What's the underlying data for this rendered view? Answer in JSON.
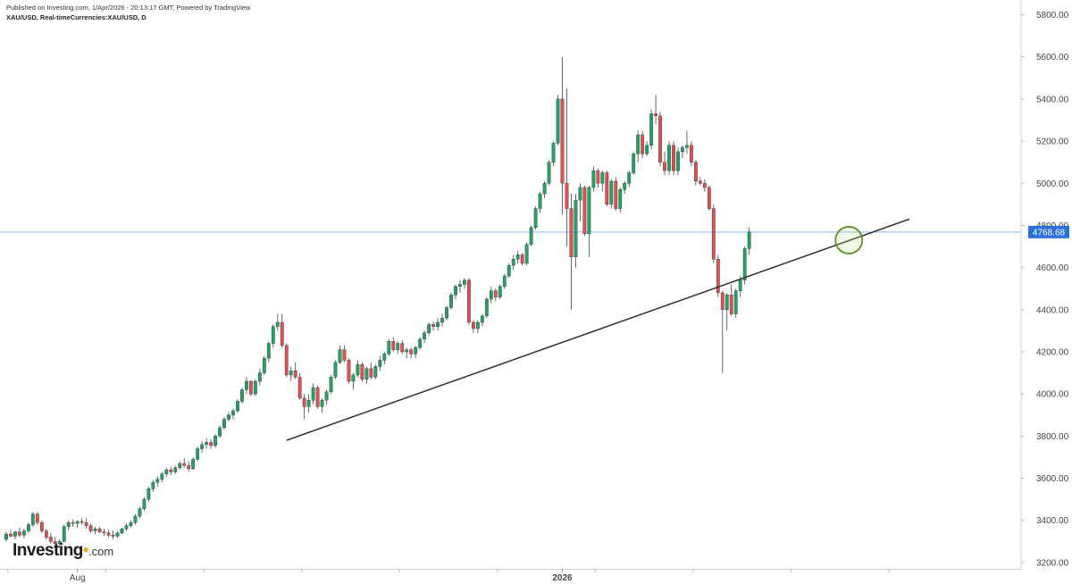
{
  "header": {
    "published": "Published on Investing.com, 1/Apr/2026 - 20:13:17 GMT, Powered by TradingView",
    "symbol": "XAU/USD, Real-timeCurrencies:XAU/USD, D"
  },
  "logo": {
    "name": "Investing",
    "suffix": ".com",
    "accent_color": "#f5a623"
  },
  "chart_data": {
    "type": "candlestick",
    "title": "",
    "xlabel": "",
    "ylabel": "",
    "ylim": [
      3170,
      5870
    ],
    "y_ticks": [
      "3200.00",
      "3400.00",
      "3600.00",
      "3800.00",
      "4000.00",
      "4200.00",
      "4400.00",
      "4600.00",
      "4800.00",
      "5000.00",
      "5200.00",
      "5400.00",
      "5600.00",
      "5800.00"
    ],
    "x_labels": [
      {
        "label": "Aug",
        "index": 16
      },
      {
        "label": "2026",
        "index": 125
      }
    ],
    "grid": false,
    "colors": {
      "up": "#26a269",
      "down": "#e0514f",
      "trendline": "#333333",
      "price_line": "#8ab4f8",
      "price_label": "#2a6fdb"
    },
    "current_price": {
      "value": 4768.68,
      "label": "4768.68"
    },
    "trendline": {
      "start": {
        "index": 63,
        "price": 3780
      },
      "end": {
        "index": 203,
        "price": 4830
      }
    },
    "highlight": {
      "index": 189,
      "price": 4730,
      "color": "#5a8f29"
    },
    "series": [
      {
        "candles": [
          [
            3310,
            3345,
            3300,
            3335
          ],
          [
            3335,
            3355,
            3320,
            3325
          ],
          [
            3325,
            3350,
            3310,
            3345
          ],
          [
            3345,
            3365,
            3320,
            3330
          ],
          [
            3330,
            3360,
            3315,
            3350
          ],
          [
            3350,
            3390,
            3340,
            3380
          ],
          [
            3380,
            3440,
            3370,
            3430
          ],
          [
            3430,
            3440,
            3380,
            3390
          ],
          [
            3390,
            3400,
            3340,
            3350
          ],
          [
            3350,
            3360,
            3310,
            3320
          ],
          [
            3320,
            3340,
            3290,
            3300
          ],
          [
            3300,
            3320,
            3270,
            3290
          ],
          [
            3290,
            3310,
            3270,
            3300
          ],
          [
            3300,
            3380,
            3295,
            3370
          ],
          [
            3370,
            3400,
            3355,
            3390
          ],
          [
            3390,
            3405,
            3370,
            3385
          ],
          [
            3385,
            3400,
            3365,
            3395
          ],
          [
            3395,
            3410,
            3380,
            3390
          ],
          [
            3390,
            3410,
            3360,
            3375
          ],
          [
            3375,
            3385,
            3340,
            3350
          ],
          [
            3350,
            3370,
            3335,
            3360
          ],
          [
            3360,
            3370,
            3340,
            3345
          ],
          [
            3345,
            3360,
            3325,
            3340
          ],
          [
            3340,
            3355,
            3320,
            3330
          ],
          [
            3330,
            3350,
            3310,
            3325
          ],
          [
            3325,
            3350,
            3315,
            3340
          ],
          [
            3340,
            3365,
            3335,
            3360
          ],
          [
            3360,
            3385,
            3350,
            3375
          ],
          [
            3375,
            3400,
            3365,
            3390
          ],
          [
            3390,
            3430,
            3380,
            3420
          ],
          [
            3420,
            3465,
            3410,
            3455
          ],
          [
            3455,
            3510,
            3445,
            3500
          ],
          [
            3500,
            3560,
            3490,
            3550
          ],
          [
            3550,
            3590,
            3535,
            3580
          ],
          [
            3580,
            3610,
            3560,
            3595
          ],
          [
            3595,
            3630,
            3580,
            3620
          ],
          [
            3620,
            3650,
            3605,
            3640
          ],
          [
            3640,
            3655,
            3615,
            3630
          ],
          [
            3630,
            3660,
            3620,
            3650
          ],
          [
            3650,
            3680,
            3640,
            3670
          ],
          [
            3670,
            3695,
            3650,
            3660
          ],
          [
            3660,
            3680,
            3630,
            3645
          ],
          [
            3645,
            3700,
            3640,
            3690
          ],
          [
            3690,
            3750,
            3680,
            3740
          ],
          [
            3740,
            3775,
            3720,
            3760
          ],
          [
            3760,
            3790,
            3740,
            3770
          ],
          [
            3770,
            3785,
            3740,
            3755
          ],
          [
            3755,
            3810,
            3745,
            3800
          ],
          [
            3800,
            3850,
            3790,
            3840
          ],
          [
            3840,
            3890,
            3830,
            3880
          ],
          [
            3880,
            3915,
            3870,
            3900
          ],
          [
            3900,
            3930,
            3880,
            3920
          ],
          [
            3920,
            3975,
            3910,
            3965
          ],
          [
            3965,
            4030,
            3955,
            4020
          ],
          [
            4020,
            4080,
            4000,
            4060
          ],
          [
            4060,
            4065,
            3990,
            4000
          ],
          [
            4000,
            4070,
            3990,
            4060
          ],
          [
            4060,
            4120,
            4040,
            4100
          ],
          [
            4100,
            4180,
            4090,
            4170
          ],
          [
            4170,
            4250,
            4150,
            4240
          ],
          [
            4240,
            4330,
            4220,
            4320
          ],
          [
            4320,
            4380,
            4300,
            4340
          ],
          [
            4340,
            4380,
            4220,
            4230
          ],
          [
            4230,
            4240,
            4080,
            4090
          ],
          [
            4090,
            4130,
            4060,
            4110
          ],
          [
            4110,
            4150,
            4070,
            4080
          ],
          [
            4080,
            4100,
            3970,
            3980
          ],
          [
            3980,
            4000,
            3880,
            3940
          ],
          [
            3940,
            4000,
            3910,
            3970
          ],
          [
            3970,
            4050,
            3950,
            4030
          ],
          [
            4030,
            4040,
            3930,
            3940
          ],
          [
            3940,
            3980,
            3910,
            3970
          ],
          [
            3970,
            4020,
            3950,
            4010
          ],
          [
            4010,
            4090,
            4000,
            4080
          ],
          [
            4080,
            4160,
            4070,
            4150
          ],
          [
            4150,
            4230,
            4140,
            4210
          ],
          [
            4210,
            4230,
            4150,
            4160
          ],
          [
            4160,
            4170,
            4050,
            4060
          ],
          [
            4060,
            4100,
            4020,
            4090
          ],
          [
            4090,
            4160,
            4080,
            4140
          ],
          [
            4140,
            4150,
            4060,
            4070
          ],
          [
            4070,
            4130,
            4050,
            4120
          ],
          [
            4120,
            4150,
            4070,
            4080
          ],
          [
            4080,
            4140,
            4070,
            4130
          ],
          [
            4130,
            4180,
            4110,
            4160
          ],
          [
            4160,
            4200,
            4140,
            4190
          ],
          [
            4190,
            4260,
            4180,
            4250
          ],
          [
            4250,
            4270,
            4200,
            4210
          ],
          [
            4210,
            4250,
            4190,
            4240
          ],
          [
            4240,
            4255,
            4190,
            4200
          ],
          [
            4200,
            4220,
            4170,
            4210
          ],
          [
            4210,
            4220,
            4170,
            4190
          ],
          [
            4190,
            4230,
            4170,
            4220
          ],
          [
            4220,
            4270,
            4210,
            4260
          ],
          [
            4260,
            4300,
            4240,
            4290
          ],
          [
            4290,
            4340,
            4280,
            4330
          ],
          [
            4330,
            4345,
            4300,
            4320
          ],
          [
            4320,
            4360,
            4300,
            4340
          ],
          [
            4340,
            4380,
            4320,
            4360
          ],
          [
            4360,
            4420,
            4350,
            4410
          ],
          [
            4410,
            4480,
            4400,
            4470
          ],
          [
            4470,
            4520,
            4450,
            4510
          ],
          [
            4510,
            4540,
            4480,
            4520
          ],
          [
            4520,
            4550,
            4500,
            4540
          ],
          [
            4540,
            4550,
            4330,
            4340
          ],
          [
            4340,
            4350,
            4290,
            4310
          ],
          [
            4310,
            4350,
            4290,
            4340
          ],
          [
            4340,
            4380,
            4320,
            4370
          ],
          [
            4370,
            4460,
            4360,
            4450
          ],
          [
            4450,
            4510,
            4430,
            4490
          ],
          [
            4490,
            4500,
            4440,
            4460
          ],
          [
            4460,
            4520,
            4450,
            4510
          ],
          [
            4510,
            4570,
            4500,
            4560
          ],
          [
            4560,
            4620,
            4550,
            4610
          ],
          [
            4610,
            4660,
            4590,
            4640
          ],
          [
            4640,
            4680,
            4620,
            4660
          ],
          [
            4660,
            4670,
            4610,
            4620
          ],
          [
            4620,
            4720,
            4610,
            4710
          ],
          [
            4710,
            4800,
            4700,
            4790
          ],
          [
            4790,
            4890,
            4780,
            4880
          ],
          [
            4880,
            4960,
            4860,
            4950
          ],
          [
            4950,
            5010,
            4930,
            5000
          ],
          [
            5000,
            5110,
            4990,
            5100
          ],
          [
            5100,
            5200,
            5080,
            5190
          ],
          [
            5190,
            5420,
            5180,
            5400
          ],
          [
            5400,
            5600,
            4850,
            5000
          ],
          [
            5000,
            5450,
            4700,
            4880
          ],
          [
            4880,
            4950,
            4400,
            4650
          ],
          [
            4650,
            4950,
            4600,
            4920
          ],
          [
            4920,
            5000,
            4820,
            4980
          ],
          [
            4980,
            4990,
            4750,
            4760
          ],
          [
            4760,
            4990,
            4650,
            4980
          ],
          [
            4980,
            5080,
            4960,
            5060
          ],
          [
            5060,
            5070,
            4980,
            5000
          ],
          [
            5000,
            5060,
            4960,
            5050
          ],
          [
            5050,
            5060,
            4890,
            4900
          ],
          [
            4900,
            5020,
            4880,
            5010
          ],
          [
            5010,
            5030,
            4870,
            4880
          ],
          [
            4880,
            4980,
            4860,
            4970
          ],
          [
            4970,
            5010,
            4950,
            5000
          ],
          [
            5000,
            5060,
            4980,
            5050
          ],
          [
            5050,
            5150,
            5040,
            5140
          ],
          [
            5140,
            5250,
            5100,
            5230
          ],
          [
            5230,
            5250,
            5120,
            5140
          ],
          [
            5140,
            5200,
            5130,
            5180
          ],
          [
            5180,
            5350,
            5160,
            5330
          ],
          [
            5330,
            5420,
            5280,
            5320
          ],
          [
            5320,
            5340,
            5080,
            5100
          ],
          [
            5100,
            5150,
            5040,
            5060
          ],
          [
            5060,
            5200,
            5040,
            5180
          ],
          [
            5180,
            5200,
            5040,
            5060
          ],
          [
            5060,
            5170,
            5040,
            5150
          ],
          [
            5150,
            5180,
            5120,
            5170
          ],
          [
            5170,
            5250,
            5140,
            5180
          ],
          [
            5180,
            5200,
            5080,
            5100
          ],
          [
            5100,
            5110,
            4990,
            5010
          ],
          [
            5010,
            5030,
            4990,
            5000
          ],
          [
            5000,
            5020,
            4960,
            4980
          ],
          [
            4980,
            4990,
            4870,
            4880
          ],
          [
            4880,
            4900,
            4620,
            4640
          ],
          [
            4640,
            4660,
            4460,
            4480
          ],
          [
            4480,
            4490,
            4100,
            4400
          ],
          [
            4400,
            4480,
            4300,
            4470
          ],
          [
            4470,
            4520,
            4370,
            4380
          ],
          [
            4380,
            4500,
            4360,
            4490
          ],
          [
            4490,
            4560,
            4460,
            4540
          ],
          [
            4540,
            4700,
            4520,
            4690
          ],
          [
            4690,
            4790,
            4660,
            4768.68
          ]
        ]
      }
    ]
  }
}
